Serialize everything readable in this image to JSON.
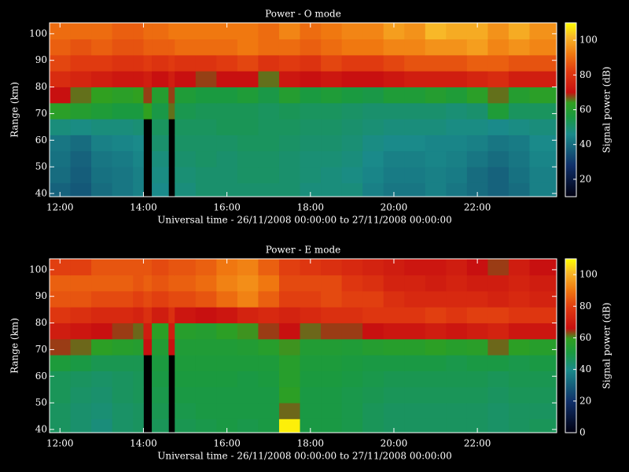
{
  "chart_data": [
    {
      "type": "heatmap",
      "title": "Power - O mode",
      "xlabel": "Universal time - 26/11/2008 00:00:00 to 27/11/2008 00:00:00",
      "ylabel": "Range (km)",
      "zlabel": "Signal power (dB)",
      "xlim": [
        11.75,
        23.9
      ],
      "ylim": [
        38.8,
        104.1
      ],
      "zlim": [
        10,
        110
      ],
      "xticks": [
        {
          "value": 12,
          "label": "12:00"
        },
        {
          "value": 14,
          "label": "14:00"
        },
        {
          "value": 16,
          "label": "16:00"
        },
        {
          "value": 18,
          "label": "18:00"
        },
        {
          "value": 20,
          "label": "20:00"
        },
        {
          "value": 22,
          "label": "22:00"
        }
      ],
      "yticks": [
        40,
        50,
        60,
        70,
        80,
        90,
        100
      ],
      "zticks": [
        20,
        40,
        60,
        80,
        100
      ],
      "x_edges": [
        11.75,
        12.25,
        12.75,
        13.25,
        13.75,
        14.0,
        14.2,
        14.6,
        14.75,
        15.25,
        15.75,
        16.25,
        16.75,
        17.25,
        17.75,
        18.25,
        18.75,
        19.25,
        19.75,
        20.25,
        20.75,
        21.25,
        21.75,
        22.25,
        22.75,
        23.25,
        23.9
      ],
      "y_edges": [
        38.8,
        44,
        50,
        56,
        62,
        68,
        74,
        80,
        86,
        92,
        98,
        104.1
      ],
      "z": [
        [
          38,
          36,
          40,
          42,
          44,
          null,
          46,
          null,
          48,
          50,
          50,
          50,
          50,
          50,
          48,
          48,
          48,
          44,
          42,
          42,
          44,
          42,
          40,
          38,
          40,
          44
        ],
        [
          40,
          37,
          41,
          42,
          44,
          null,
          47,
          null,
          49,
          50,
          50,
          51,
          51,
          50,
          49,
          48,
          47,
          45,
          43,
          43,
          44,
          43,
          40,
          38,
          41,
          44
        ],
        [
          41,
          38,
          42,
          43,
          45,
          null,
          48,
          null,
          50,
          51,
          50,
          51,
          51,
          50,
          49,
          49,
          48,
          46,
          44,
          44,
          45,
          44,
          42,
          40,
          42,
          45
        ],
        [
          42,
          40,
          44,
          45,
          46,
          null,
          50,
          null,
          51,
          51,
          51,
          52,
          52,
          51,
          50,
          50,
          49,
          47,
          46,
          46,
          45,
          45,
          44,
          42,
          43,
          46
        ],
        [
          48,
          47,
          48,
          48,
          49,
          null,
          52,
          null,
          52,
          52,
          53,
          53,
          52,
          52,
          51,
          51,
          50,
          49,
          48,
          48,
          48,
          47,
          47,
          46,
          47,
          48
        ],
        [
          62,
          60,
          58,
          56,
          56,
          64,
          55,
          66,
          54,
          53,
          53,
          53,
          52,
          53,
          52,
          52,
          51,
          50,
          50,
          50,
          50,
          49,
          50,
          58,
          52,
          52
        ],
        [
          70,
          66,
          64,
          62,
          64,
          68,
          60,
          68,
          58,
          56,
          56,
          58,
          55,
          60,
          56,
          58,
          56,
          55,
          58,
          58,
          60,
          58,
          62,
          66,
          60,
          62
        ],
        [
          78,
          76,
          74,
          72,
          72,
          74,
          70,
          74,
          70,
          68,
          70,
          70,
          66,
          72,
          70,
          72,
          70,
          70,
          72,
          74,
          74,
          74,
          76,
          78,
          74,
          74
        ],
        [
          84,
          82,
          82,
          80,
          80,
          82,
          80,
          82,
          80,
          80,
          82,
          84,
          80,
          82,
          80,
          84,
          82,
          82,
          84,
          86,
          86,
          86,
          88,
          88,
          86,
          86
        ],
        [
          88,
          86,
          88,
          86,
          86,
          88,
          88,
          88,
          90,
          90,
          90,
          92,
          90,
          90,
          88,
          90,
          92,
          92,
          94,
          94,
          96,
          96,
          98,
          94,
          96,
          94
        ],
        [
          90,
          90,
          90,
          88,
          88,
          90,
          90,
          92,
          92,
          92,
          92,
          92,
          90,
          94,
          90,
          92,
          94,
          94,
          98,
          96,
          102,
          100,
          100,
          96,
          100,
          96
        ]
      ]
    },
    {
      "type": "heatmap",
      "title": "Power - E mode",
      "xlabel": "Universal time - 26/11/2008 00:00:00 to 27/11/2008 00:00:00",
      "ylabel": "Range (km)",
      "zlabel": "Signal power (dB)",
      "xlim": [
        11.75,
        23.9
      ],
      "ylim": [
        38.8,
        104.1
      ],
      "zlim": [
        0,
        110
      ],
      "xticks": [
        {
          "value": 12,
          "label": "12:00"
        },
        {
          "value": 14,
          "label": "14:00"
        },
        {
          "value": 16,
          "label": "16:00"
        },
        {
          "value": 18,
          "label": "18:00"
        },
        {
          "value": 20,
          "label": "20:00"
        },
        {
          "value": 22,
          "label": "22:00"
        }
      ],
      "yticks": [
        40,
        50,
        60,
        70,
        80,
        90,
        100
      ],
      "zticks": [
        0,
        20,
        40,
        60,
        80,
        100
      ],
      "x_edges": [
        11.75,
        12.25,
        12.75,
        13.25,
        13.75,
        14.0,
        14.2,
        14.6,
        14.75,
        15.25,
        15.75,
        16.25,
        16.75,
        17.25,
        17.75,
        18.25,
        18.75,
        19.25,
        19.75,
        20.25,
        20.75,
        21.25,
        21.75,
        22.25,
        22.75,
        23.25,
        23.9
      ],
      "y_edges": [
        38.8,
        44,
        50,
        56,
        62,
        68,
        74,
        80,
        86,
        92,
        98,
        104.1
      ],
      "z": [
        [
          46,
          44,
          42,
          45,
          46,
          null,
          47,
          null,
          48,
          49,
          50,
          49,
          50,
          108,
          50,
          50,
          49,
          47,
          46,
          46,
          46,
          46,
          46,
          45,
          46,
          47
        ],
        [
          46,
          44,
          43,
          45,
          46,
          null,
          48,
          null,
          49,
          50,
          50,
          50,
          50,
          62,
          50,
          50,
          49,
          47,
          46,
          46,
          46,
          46,
          46,
          45,
          46,
          46
        ],
        [
          47,
          45,
          44,
          46,
          47,
          null,
          49,
          null,
          50,
          50,
          50,
          50,
          50,
          58,
          50,
          50,
          49,
          48,
          47,
          47,
          47,
          47,
          47,
          46,
          47,
          47
        ],
        [
          47,
          46,
          45,
          46,
          47,
          null,
          50,
          null,
          51,
          51,
          51,
          50,
          51,
          56,
          51,
          51,
          50,
          49,
          48,
          48,
          48,
          48,
          48,
          47,
          48,
          48
        ],
        [
          52,
          50,
          48,
          48,
          48,
          null,
          51,
          null,
          52,
          52,
          52,
          52,
          52,
          56,
          52,
          52,
          51,
          50,
          50,
          50,
          50,
          49,
          50,
          50,
          49,
          50
        ],
        [
          64,
          62,
          58,
          56,
          55,
          66,
          54,
          66,
          53,
          53,
          53,
          54,
          56,
          60,
          54,
          54,
          53,
          55,
          56,
          56,
          58,
          56,
          57,
          62,
          58,
          56
        ],
        [
          70,
          68,
          66,
          64,
          62,
          70,
          58,
          70,
          56,
          55,
          58,
          60,
          64,
          66,
          62,
          64,
          64,
          66,
          68,
          68,
          70,
          68,
          70,
          72,
          68,
          68
        ],
        [
          78,
          76,
          74,
          74,
          72,
          76,
          70,
          76,
          68,
          66,
          68,
          72,
          74,
          72,
          74,
          76,
          76,
          78,
          78,
          78,
          80,
          78,
          80,
          80,
          78,
          78
        ],
        [
          84,
          84,
          82,
          82,
          80,
          82,
          80,
          82,
          82,
          84,
          88,
          92,
          86,
          80,
          80,
          82,
          80,
          80,
          76,
          74,
          74,
          74,
          74,
          72,
          74,
          72
        ],
        [
          86,
          86,
          86,
          86,
          84,
          86,
          84,
          86,
          86,
          88,
          92,
          94,
          90,
          82,
          82,
          82,
          78,
          76,
          72,
          72,
          70,
          72,
          70,
          70,
          72,
          70
        ],
        [
          80,
          80,
          84,
          84,
          84,
          84,
          82,
          84,
          84,
          86,
          90,
          92,
          86,
          80,
          78,
          76,
          74,
          72,
          70,
          68,
          68,
          70,
          66,
          64,
          70,
          66
        ]
      ]
    }
  ]
}
